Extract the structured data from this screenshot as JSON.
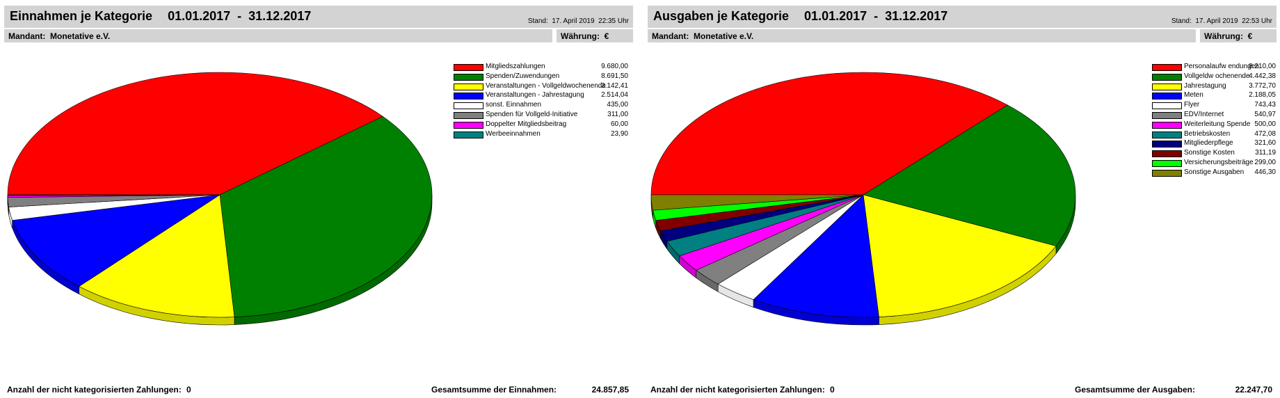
{
  "left": {
    "title": "Einnahmen je Kategorie",
    "range": "01.01.2017  -  31.12.2017",
    "stand_label": "Stand:",
    "stand_date": "17. April 2019",
    "stand_time": "22:35 Uhr",
    "mandant_label": "Mandant:",
    "mandant_value": "Monetative e.V.",
    "waehrung_label": "Währung:",
    "waehrung_value": "€",
    "footer_uncat_label": "Anzahl der nicht kategorisierten Zahlungen:",
    "footer_uncat_value": "0",
    "footer_total_label": "Gesamtsumme der Einnahmen:",
    "footer_total_value": "24.857,85"
  },
  "right": {
    "title": "Ausgaben je Kategorie",
    "range": "01.01.2017  -  31.12.2017",
    "stand_label": "Stand:",
    "stand_date": "17. April 2019",
    "stand_time": "22:53 Uhr",
    "mandant_label": "Mandant:",
    "mandant_value": "Monetative e.V.",
    "waehrung_label": "Währung:",
    "waehrung_value": "€",
    "footer_uncat_label": "Anzahl der nicht kategorisierten Zahlungen:",
    "footer_uncat_value": "0",
    "footer_total_label": "Gesamtsumme der Ausgaben:",
    "footer_total_value": "22.247,70"
  },
  "chart_data": [
    {
      "type": "pie",
      "title": "Einnahmen je Kategorie",
      "legend_position": "right",
      "categories": [
        "Mitgliedszahlungen",
        "Spenden/Zuwendungen",
        "Veranstaltungen - Vollgeldwochenende",
        "Veranstaltungen - Jahrestagung",
        "sonst. Einnahmen",
        "Spenden für Vollgeld-Initiative",
        "Doppelter Mitgliedsbeitrag",
        "Werbeeinnahmen"
      ],
      "value_labels": [
        "9.680,00",
        "8.691,50",
        "3.142,41",
        "2.514,04",
        "435,00",
        "311,00",
        "60,00",
        "23,90"
      ],
      "values": [
        9680.0,
        8691.5,
        3142.41,
        2514.04,
        435.0,
        311.0,
        60.0,
        23.9
      ],
      "colors": [
        "#ff0000",
        "#008000",
        "#ffff00",
        "#0000ff",
        "#ffffff",
        "#808080",
        "#ff00ff",
        "#008080"
      ]
    },
    {
      "type": "pie",
      "title": "Ausgaben je Kategorie",
      "legend_position": "right",
      "categories": [
        "Personalaufw endungen",
        "Vollgeldw ochenende",
        "Jahrestagung",
        "Meten",
        "Flyer",
        "EDV/Internet",
        "Weiterleitung Spende",
        "Betriebskosten",
        "Mitgliederpflege",
        "Sonstige Kosten",
        "Versicherungsbeiträge",
        "Sonstige Ausgaben"
      ],
      "value_labels": [
        "8.210,00",
        "4.442,38",
        "3.772,70",
        "2.188,05",
        "743,43",
        "540,97",
        "500,00",
        "472,08",
        "321,60",
        "311,19",
        "299,00",
        "446,30"
      ],
      "values": [
        8210.0,
        4442.38,
        3772.7,
        2188.05,
        743.43,
        540.97,
        500.0,
        472.08,
        321.6,
        311.19,
        299.0,
        446.3
      ],
      "colors": [
        "#ff0000",
        "#008000",
        "#ffff00",
        "#0000ff",
        "#ffffff",
        "#808080",
        "#ff00ff",
        "#008080",
        "#000080",
        "#800000",
        "#00ff00",
        "#808000"
      ]
    }
  ]
}
